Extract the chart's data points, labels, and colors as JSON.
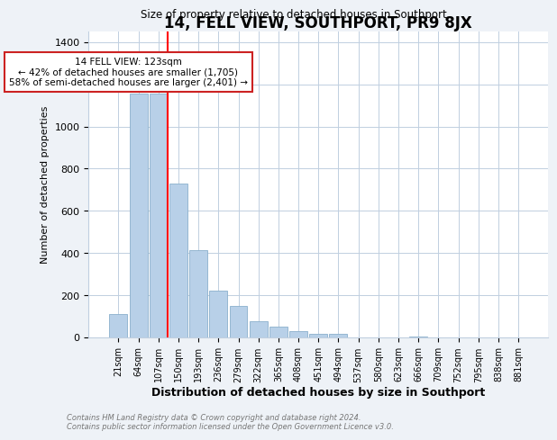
{
  "title": "14, FELL VIEW, SOUTHPORT, PR9 8JX",
  "subtitle": "Size of property relative to detached houses in Southport",
  "xlabel": "Distribution of detached houses by size in Southport",
  "ylabel": "Number of detached properties",
  "bar_labels": [
    "21sqm",
    "64sqm",
    "107sqm",
    "150sqm",
    "193sqm",
    "236sqm",
    "279sqm",
    "322sqm",
    "365sqm",
    "408sqm",
    "451sqm",
    "494sqm",
    "537sqm",
    "580sqm",
    "623sqm",
    "666sqm",
    "709sqm",
    "752sqm",
    "795sqm",
    "838sqm",
    "881sqm"
  ],
  "bar_heights": [
    110,
    1155,
    1155,
    730,
    415,
    220,
    148,
    75,
    50,
    30,
    18,
    15,
    0,
    0,
    0,
    5,
    0,
    0,
    0,
    0,
    0
  ],
  "bar_color": "#b8d0e8",
  "bar_edge_color": "#8ab0cc",
  "red_line_index": 2,
  "annotation_title": "14 FELL VIEW: 123sqm",
  "annotation_line1": "← 42% of detached houses are smaller (1,705)",
  "annotation_line2": "58% of semi-detached houses are larger (2,401) →",
  "ylim": [
    0,
    1450
  ],
  "yticks": [
    0,
    200,
    400,
    600,
    800,
    1000,
    1200,
    1400
  ],
  "footer1": "Contains HM Land Registry data © Crown copyright and database right 2024.",
  "footer2": "Contains public sector information licensed under the Open Government Licence v3.0.",
  "background_color": "#eef2f7",
  "plot_background": "#ffffff",
  "grid_color": "#c0cfe0"
}
